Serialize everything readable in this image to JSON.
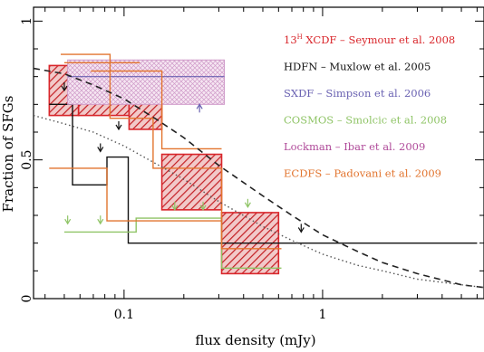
{
  "chart_data": {
    "type": "line",
    "title": "",
    "xlabel": "flux density (mJy)",
    "ylabel": "Fraction of SFGs",
    "x_scale": "log",
    "xlim": [
      0.035,
      6.5
    ],
    "ylim": [
      0,
      1.05
    ],
    "x_ticks": [
      {
        "value": 0.1,
        "label": "0.1"
      },
      {
        "value": 1,
        "label": "1"
      }
    ],
    "y_ticks": [
      {
        "value": 0,
        "label": "0"
      },
      {
        "value": 0.5,
        "label": "0.5"
      },
      {
        "value": 1,
        "label": "1"
      }
    ],
    "grid": false,
    "legend_position": "top-right",
    "series": [
      {
        "name": "13^H XCDF – Seymour et al. 2008",
        "legend_label": "13H XCDF – Seymour et al. 2008",
        "kind": "boxes",
        "color": "#d9262b",
        "fill": "hatch",
        "bins": [
          {
            "x0": 0.042,
            "x1": 0.059,
            "y0": 0.66,
            "y1": 0.84
          },
          {
            "x0": 0.059,
            "x1": 0.106,
            "y0": 0.66,
            "y1": 0.79
          },
          {
            "x0": 0.106,
            "x1": 0.155,
            "y0": 0.61,
            "y1": 0.74
          },
          {
            "x0": 0.155,
            "x1": 0.31,
            "y0": 0.32,
            "y1": 0.52
          },
          {
            "x0": 0.31,
            "x1": 0.6,
            "y0": 0.09,
            "y1": 0.31
          }
        ]
      },
      {
        "name": "HDFN – Muxlow et al. 2005",
        "legend_label": "HDFN – Muxlow et al. 2005",
        "kind": "step",
        "color": "#111111",
        "x": [
          0.042,
          0.055,
          0.055,
          0.082,
          0.082,
          0.105,
          0.105,
          6.0
        ],
        "y": [
          0.7,
          0.7,
          0.41,
          0.41,
          0.51,
          0.51,
          0.2,
          0.2
        ],
        "arrows": [
          {
            "x": 0.05,
            "y": 0.75
          },
          {
            "x": 0.076,
            "y": 0.53
          },
          {
            "x": 0.094,
            "y": 0.61
          },
          {
            "x": 0.78,
            "y": 0.24
          }
        ]
      },
      {
        "name": "SXDF – Simpson et al. 2006",
        "legend_label": "SXDF – Simpson et al. 2006",
        "kind": "boxes",
        "color": "#6a62b2",
        "fill": "crosshatch",
        "bins": [
          {
            "x0": 0.052,
            "x1": 0.32,
            "y0": 0.7,
            "y1": 0.86
          }
        ],
        "line_y": 0.8,
        "arrows": [
          {
            "x": 0.24,
            "y": 0.7
          }
        ]
      },
      {
        "name": "COSMOS – Smolcic et al. 2008",
        "legend_label": "COSMOS – Smolcic et al. 2008",
        "kind": "step",
        "color": "#8fc466",
        "x": [
          0.05,
          0.115,
          0.115,
          0.31,
          0.31,
          0.62
        ],
        "y": [
          0.24,
          0.24,
          0.29,
          0.29,
          0.11,
          0.11
        ],
        "arrows": [
          {
            "x": 0.052,
            "y": 0.27
          },
          {
            "x": 0.076,
            "y": 0.27
          },
          {
            "x": 0.18,
            "y": 0.32
          },
          {
            "x": 0.25,
            "y": 0.32
          },
          {
            "x": 0.42,
            "y": 0.33
          }
        ]
      },
      {
        "name": "Lockman – Ibar et al. 2009",
        "legend_label": "Lockman – Ibar et al. 2009",
        "kind": "line",
        "color": "#b04b9a",
        "x": [],
        "y": []
      },
      {
        "name": "ECDFS – Padovani et al. 2009",
        "legend_label": "ECDFS – Padovani et al. 2009",
        "kind": "step",
        "color": "#e2742e",
        "x": [
          0.048,
          0.085,
          0.085,
          0.14,
          0.14,
          0.31,
          0.31,
          0.62
        ],
        "y": [
          0.88,
          0.88,
          0.65,
          0.65,
          0.47,
          0.47,
          0.18,
          0.18
        ],
        "extra_segments": [
          {
            "x": [
              0.042,
              0.082,
              0.082,
              0.31
            ],
            "y": [
              0.47,
              0.47,
              0.28,
              0.28
            ]
          },
          {
            "x": [
              0.05,
              0.12
            ],
            "y": [
              0.85,
              0.85
            ]
          },
          {
            "x": [
              0.068,
              0.155,
              0.155,
              0.31
            ],
            "y": [
              0.82,
              0.82,
              0.54,
              0.54
            ]
          }
        ]
      },
      {
        "name": "model (dashed)",
        "kind": "curve",
        "style": "dashed",
        "color": "#222222",
        "x": [
          0.035,
          0.05,
          0.07,
          0.1,
          0.15,
          0.2,
          0.3,
          0.5,
          0.7,
          1.0,
          1.5,
          2.0,
          3.0,
          5.0,
          6.5
        ],
        "y": [
          0.83,
          0.81,
          0.77,
          0.72,
          0.64,
          0.58,
          0.48,
          0.37,
          0.3,
          0.23,
          0.17,
          0.13,
          0.09,
          0.05,
          0.04
        ]
      },
      {
        "name": "model (dotted)",
        "kind": "curve",
        "style": "dotted",
        "color": "#555555",
        "x": [
          0.035,
          0.05,
          0.07,
          0.1,
          0.15,
          0.2,
          0.3,
          0.5,
          0.7,
          1.0,
          1.5,
          2.0,
          3.0,
          5.0,
          6.5
        ],
        "y": [
          0.66,
          0.63,
          0.6,
          0.55,
          0.48,
          0.43,
          0.35,
          0.26,
          0.21,
          0.16,
          0.12,
          0.1,
          0.07,
          0.05,
          0.04
        ]
      }
    ]
  }
}
